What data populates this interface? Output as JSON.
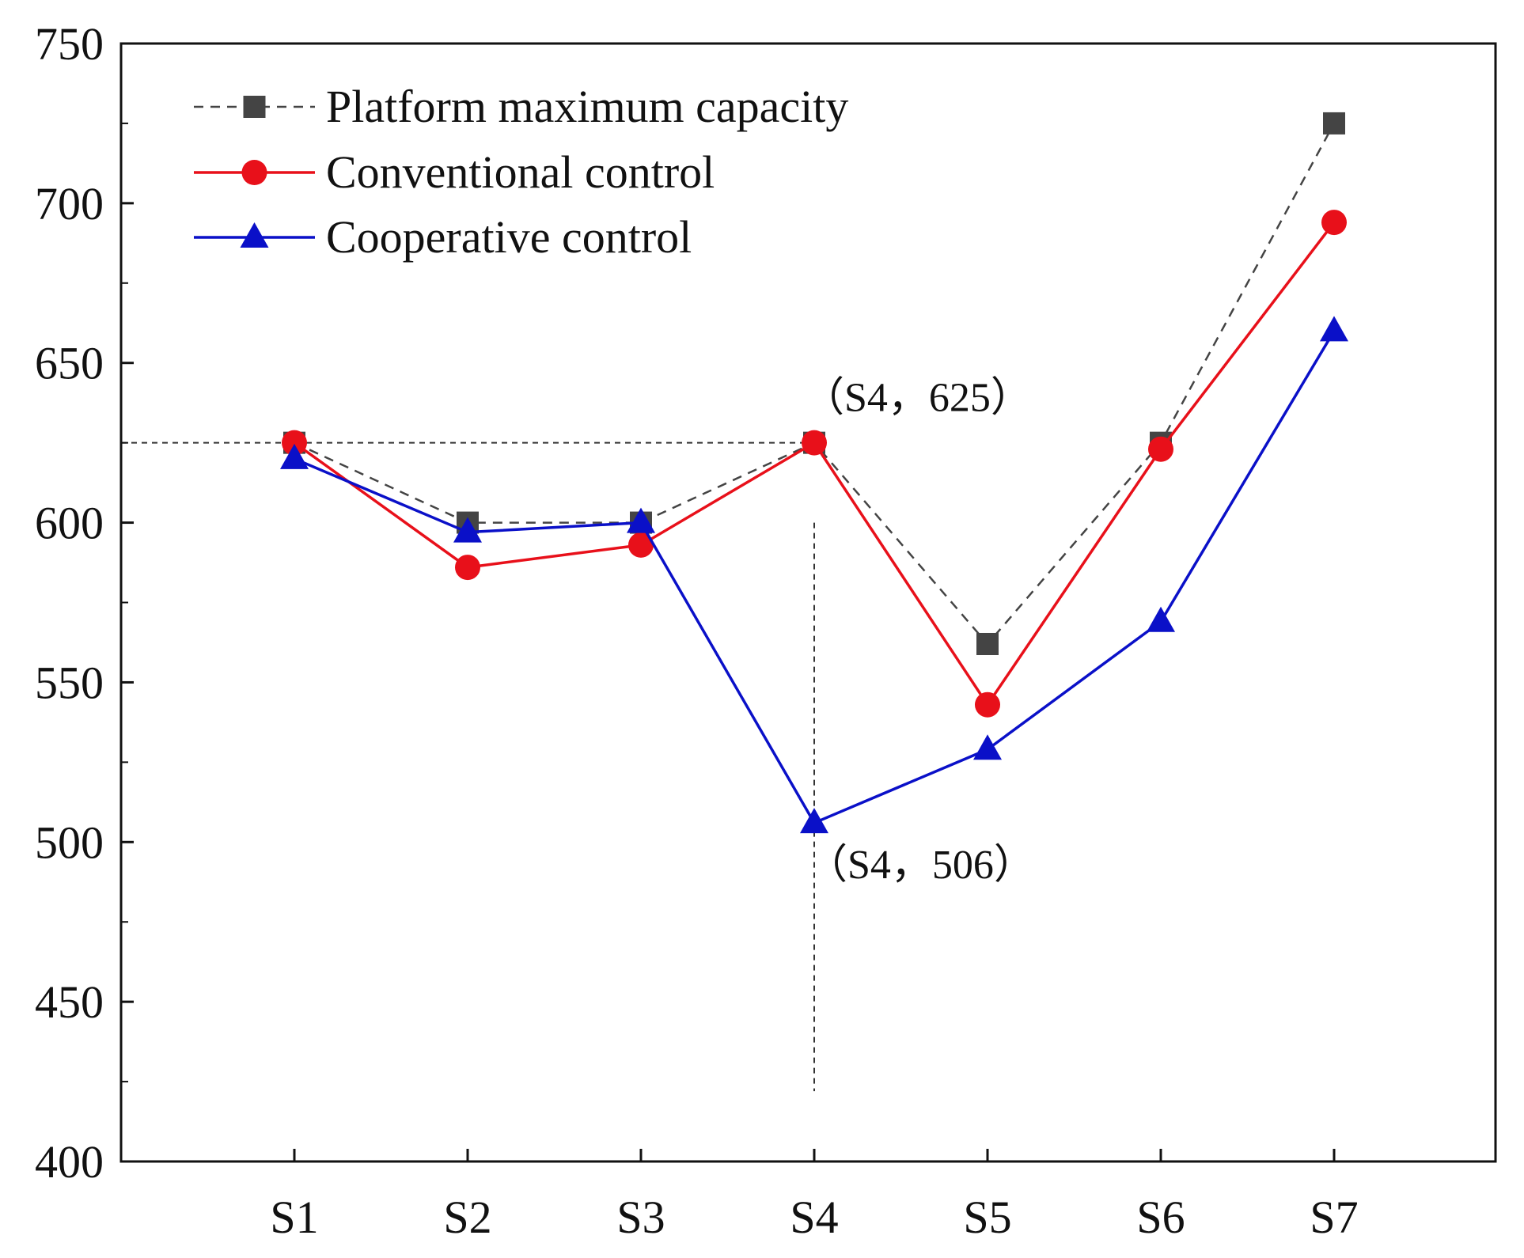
{
  "chart_data": {
    "type": "line",
    "title": "",
    "xlabel": "",
    "ylabel": "",
    "categories": [
      "S1",
      "S2",
      "S3",
      "S4",
      "S5",
      "S6",
      "S7"
    ],
    "ylim": [
      400,
      750
    ],
    "yticks": [
      400,
      450,
      500,
      550,
      600,
      650,
      700,
      750
    ],
    "ytick_labels": [
      "400",
      "450",
      "500",
      "550",
      "600",
      "650",
      "700",
      "750"
    ],
    "grid": false,
    "legend_position": "top-left",
    "series": [
      {
        "name": "Platform maximum capacity",
        "values": [
          625,
          600,
          600,
          625,
          562,
          625,
          725
        ],
        "color": "#444444",
        "line_style": "dashed",
        "marker": "square"
      },
      {
        "name": "Conventional control",
        "values": [
          625,
          586,
          593,
          625,
          543,
          623,
          694
        ],
        "color": "#e8101a",
        "line_style": "solid",
        "marker": "circle"
      },
      {
        "name": "Cooperative control",
        "values": [
          620,
          597,
          600,
          506,
          529,
          569,
          660
        ],
        "color": "#0a10c8",
        "line_style": "solid",
        "marker": "triangle"
      }
    ],
    "annotations": [
      {
        "text": "（S4，625）",
        "category": "S4",
        "value": 625
      },
      {
        "text": "（S4，506）",
        "category": "S4",
        "value": 506
      }
    ]
  }
}
